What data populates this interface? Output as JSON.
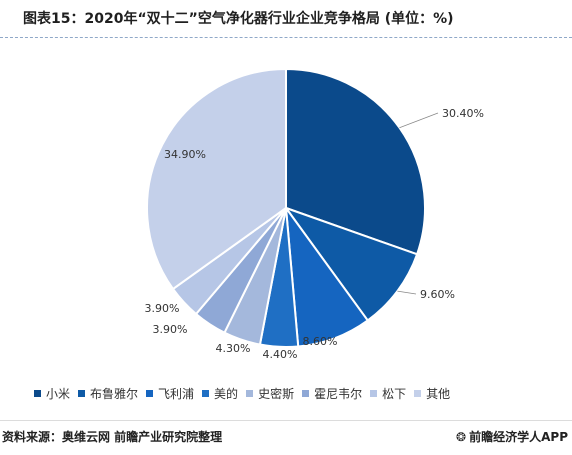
{
  "title": "图表15：2020年“双十二”空气净化器行业企业竞争格局 (单位：%)",
  "chart_data": {
    "type": "pie",
    "title": "图表15：2020年“双十二”空气净化器行业企业竞争格局 (单位：%)",
    "slices": [
      {
        "name": "小米",
        "value": 30.4,
        "label": "30.40%",
        "color": "#0b4a8b"
      },
      {
        "name": "布鲁雅尔",
        "value": 9.6,
        "label": "9.60%",
        "color": "#0e5aa6"
      },
      {
        "name": "飞利浦",
        "value": 8.6,
        "label": "8.60%",
        "color": "#1565c0"
      },
      {
        "name": "美的",
        "value": 4.4,
        "label": "4.40%",
        "color": "#1f6fc4"
      },
      {
        "name": "史密斯",
        "value": 4.3,
        "label": "4.30%",
        "color": "#a4b8dc"
      },
      {
        "name": "霍尼韦尔",
        "value": 3.9,
        "label": "3.90%",
        "color": "#8fa8d6"
      },
      {
        "name": "松下",
        "value": 3.9,
        "label": "3.90%",
        "color": "#b6c6e6"
      },
      {
        "name": "其他",
        "value": 34.9,
        "label": "34.90%",
        "color": "#c4d0ea"
      }
    ],
    "legend_position": "bottom"
  },
  "source": "资料来源：奥维云网 前瞻产业研究院整理",
  "brand": "前瞻经济学人APP",
  "brand_icon": "qianzhan-logo-icon"
}
